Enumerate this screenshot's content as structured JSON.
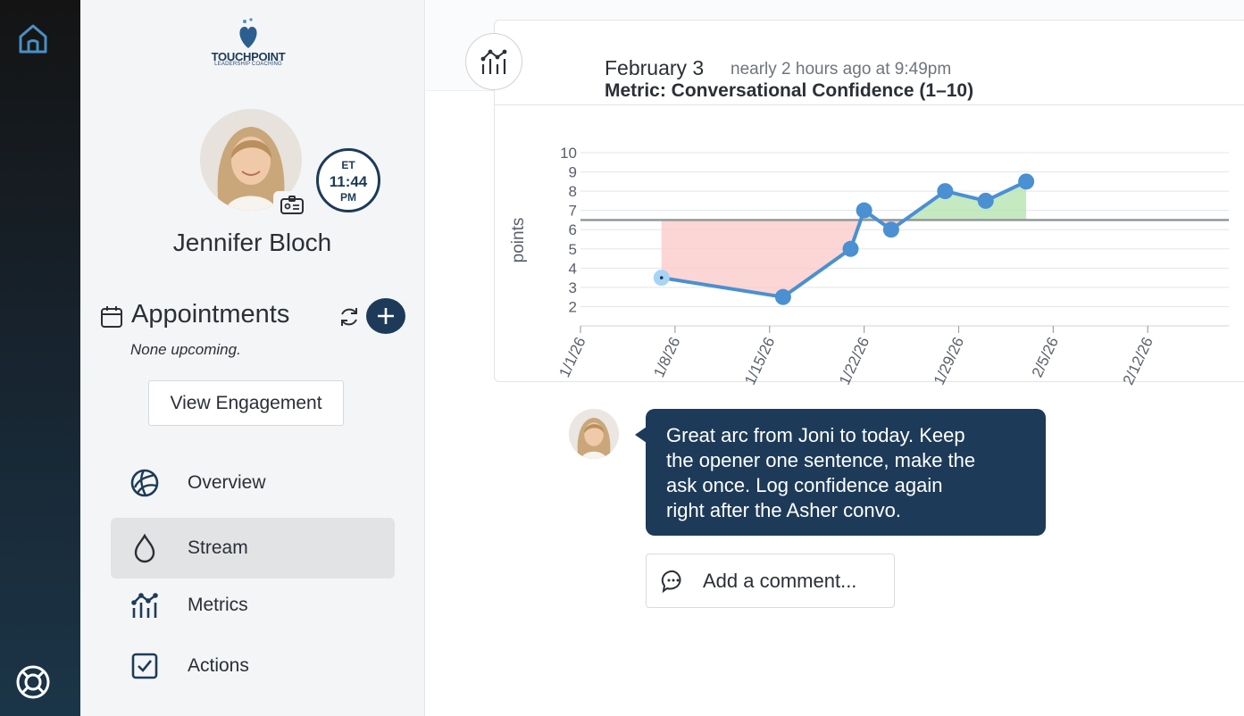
{
  "brand": {
    "wordmark": "TOUCHPOINT",
    "tagline": "LEADERSHIP COACHING",
    "accent": "#1d3b58"
  },
  "rail": {
    "home_icon": "home-icon",
    "help_icon": "lifebuoy-icon"
  },
  "profile": {
    "name": "Jennifer Bloch",
    "timezone": "ET",
    "time": "11:44",
    "ampm": "PM"
  },
  "appointments": {
    "title": "Appointments",
    "empty_text": "None upcoming."
  },
  "view_engagement_label": "View Engagement",
  "nav": {
    "items": [
      {
        "label": "Overview",
        "icon": "overview-icon",
        "active": false
      },
      {
        "label": "Stream",
        "icon": "droplet-icon",
        "active": true
      },
      {
        "label": "Metrics",
        "icon": "metrics-icon",
        "active": false
      },
      {
        "label": "Actions",
        "icon": "checkbox-icon",
        "active": false
      }
    ]
  },
  "post": {
    "date": "February 3",
    "ago": "nearly 2 hours ago at 9:49pm",
    "metric_title": "Metric: Conversational Confidence (1–10)"
  },
  "chart_data": {
    "type": "line",
    "ylabel": "points",
    "ylim": [
      1,
      10
    ],
    "yticks": [
      2,
      3,
      4,
      5,
      6,
      7,
      8,
      9,
      10
    ],
    "xticks": [
      "1/1/26",
      "1/8/26",
      "1/15/26",
      "1/22/26",
      "1/29/26",
      "2/5/26",
      "2/12/26"
    ],
    "baseline": 6.5,
    "grid": true,
    "series": [
      {
        "points": [
          {
            "x": "2026-01-07",
            "y": 3.5
          },
          {
            "x": "2026-01-16",
            "y": 2.5
          },
          {
            "x": "2026-01-21",
            "y": 5
          },
          {
            "x": "2026-01-22",
            "y": 7
          },
          {
            "x": "2026-01-24",
            "y": 6
          },
          {
            "x": "2026-01-28",
            "y": 8
          },
          {
            "x": "2026-01-31",
            "y": 7.5
          },
          {
            "x": "2026-02-03",
            "y": 8.5
          }
        ],
        "color": "#4a90d2",
        "below_color": "#fbcaca",
        "above_color": "#b6e3b2"
      }
    ]
  },
  "comment": {
    "text_lines": [
      "Great arc from Joni to today. Keep",
      "the opener one sentence, make the",
      "ask once. Log confidence again",
      "right after the Asher convo."
    ]
  },
  "add_comment_placeholder": "Add a comment..."
}
